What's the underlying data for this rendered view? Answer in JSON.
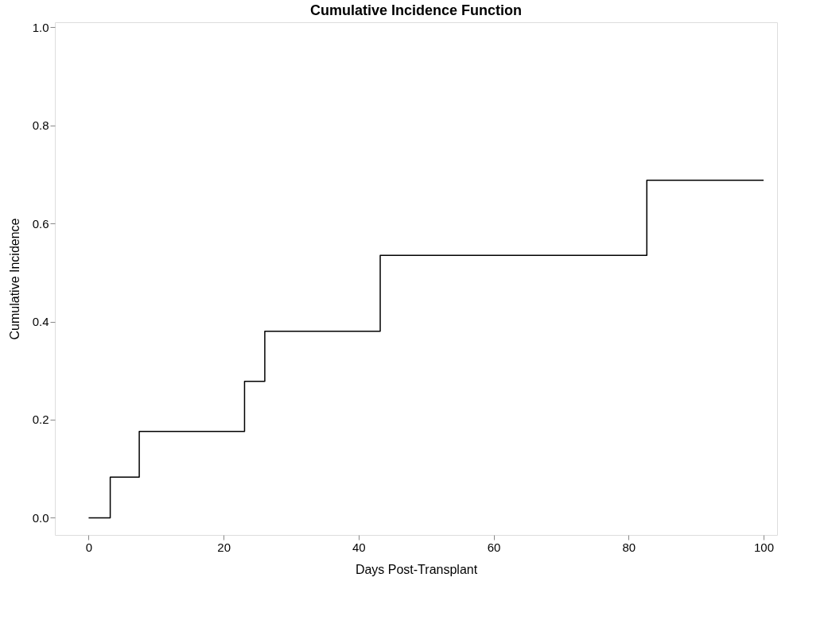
{
  "chart_data": {
    "type": "step",
    "title": "Cumulative Incidence Function",
    "xlabel": "Days Post-Transplant",
    "ylabel": "Cumulative Incidence",
    "x": [
      0,
      3.2,
      7.5,
      23.1,
      26.1,
      43.2,
      82.7,
      100
    ],
    "series": [
      {
        "color": "#000000",
        "values": [
          0,
          0.083,
          0.176,
          0.278,
          0.38,
          0.535,
          0.688,
          0.688
        ]
      }
    ],
    "xlim": [
      -5,
      102
    ],
    "xticks": [
      0,
      20,
      40,
      60,
      80,
      100
    ],
    "ylim": [
      -0.035,
      1.01
    ],
    "yticks": [
      {
        "value": 0,
        "label": "0.0"
      },
      {
        "value": 0.2,
        "label": "0.2"
      },
      {
        "value": 0.4,
        "label": "0.4"
      },
      {
        "value": 0.6,
        "label": "0.6"
      },
      {
        "value": 0.8,
        "label": "0.8"
      },
      {
        "value": 1,
        "label": "1.0"
      }
    ],
    "grid": false,
    "legend": false,
    "marker": "none",
    "line_style": "solid"
  }
}
